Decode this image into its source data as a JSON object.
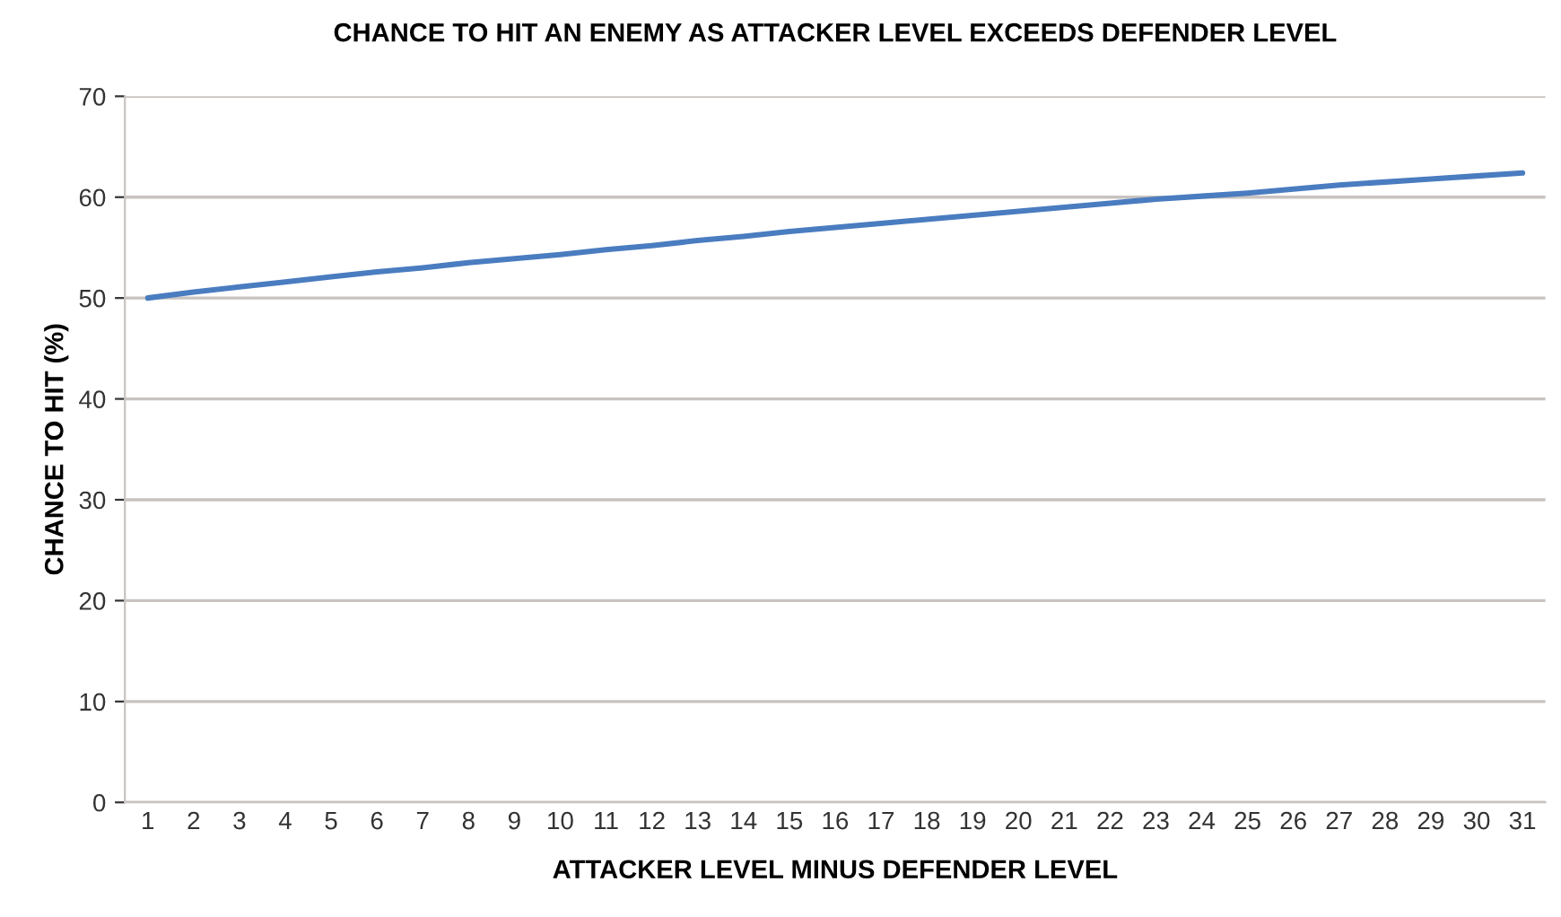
{
  "chart_data": {
    "type": "line",
    "title": "CHANCE TO HIT AN ENEMY AS ATTACKER LEVEL EXCEEDS DEFENDER LEVEL",
    "xlabel": "ATTACKER LEVEL MINUS DEFENDER LEVEL",
    "ylabel": "CHANCE TO HIT (%)",
    "categories": [
      "1",
      "2",
      "3",
      "4",
      "5",
      "6",
      "7",
      "8",
      "9",
      "10",
      "11",
      "12",
      "13",
      "14",
      "15",
      "16",
      "17",
      "18",
      "19",
      "20",
      "21",
      "22",
      "23",
      "24",
      "25",
      "26",
      "27",
      "28",
      "29",
      "30",
      "31"
    ],
    "series": [
      {
        "color": "#4a7cc0",
        "values": [
          50.0,
          50.6,
          51.1,
          51.6,
          52.1,
          52.6,
          53.0,
          53.5,
          53.9,
          54.3,
          54.8,
          55.2,
          55.7,
          56.1,
          56.6,
          57.0,
          57.4,
          57.8,
          58.2,
          58.6,
          59.0,
          59.4,
          59.8,
          60.1,
          60.4,
          60.8,
          61.2,
          61.5,
          61.8,
          62.1,
          62.4
        ]
      }
    ],
    "ylim": [
      0,
      70
    ],
    "yticks": [
      0,
      10,
      20,
      30,
      40,
      50,
      60,
      70
    ],
    "grid": "y",
    "legend": false
  }
}
